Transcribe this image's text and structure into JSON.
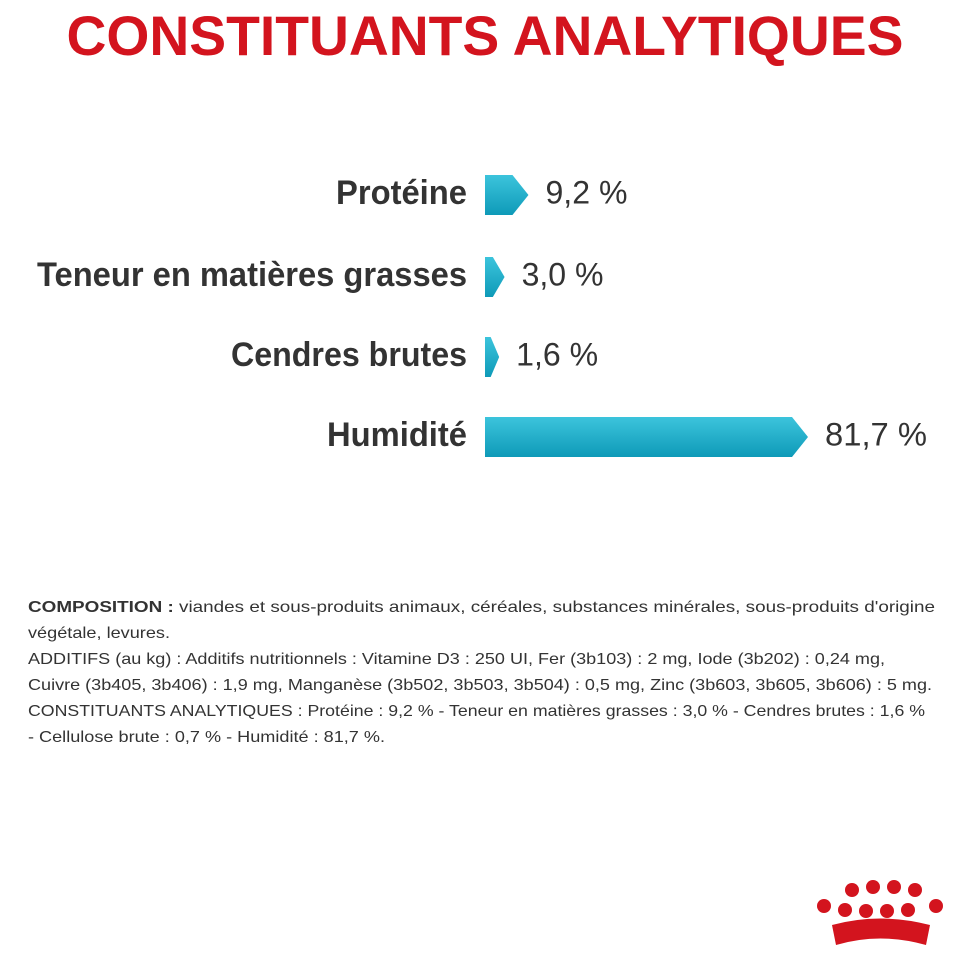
{
  "chart_data": {
    "type": "bar",
    "title": "CONSTITUANTS ANALYTIQUES",
    "categories": [
      "Protéine",
      "Teneur en matières grasses",
      "Cendres brutes",
      "Humidité"
    ],
    "values": [
      9.2,
      3.0,
      1.6,
      81.7
    ],
    "value_labels": [
      "9,2 %",
      "3,0 %",
      "1,6 %",
      "81,7 %"
    ],
    "color": "#19aecb"
  },
  "composition": {
    "label": "COMPOSITION :",
    "lines": [
      " viandes et sous-produits animaux, céréales, substances minérales, sous-produits d'origine",
      "végétale, levures.",
      "ADDITIFS (au kg) : Additifs nutritionnels : Vitamine D3 : 250 UI, Fer (3b103) : 2 mg, Iode (3b202) : 0,24 mg,",
      "Cuivre (3b405, 3b406) : 1,9 mg, Manganèse (3b502, 3b503, 3b504) : 0,5 mg, Zinc (3b603, 3b605, 3b606) : 5 mg.",
      "CONSTITUANTS ANALYTIQUES : Protéine : 9,2 % - Teneur en matières grasses : 3,0 % - Cendres brutes : 1,6 %",
      "- Cellulose brute : 0,7 % - Humidité : 81,7 %."
    ]
  }
}
